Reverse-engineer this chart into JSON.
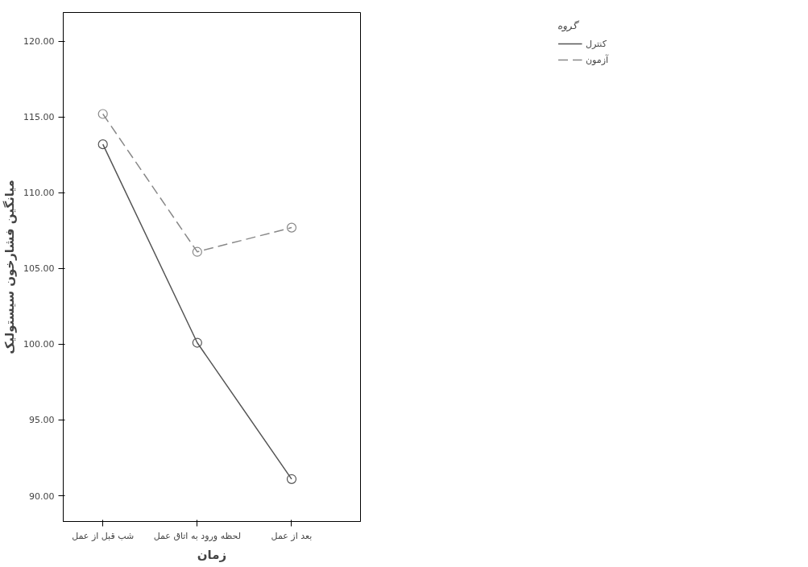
{
  "chart_data": {
    "type": "line",
    "xlabel": "زمان",
    "ylabel": "میانگین فشارخون سیستولیک",
    "legend_title": "گروه",
    "categories": [
      "شب قبل از عمل",
      "لحظه ورود به اتاق عمل",
      "بعد از عمل"
    ],
    "series": [
      {
        "name": "کنترل",
        "color": "#555555",
        "line_style": "solid",
        "values": [
          113.2,
          100.1,
          91.1
        ]
      },
      {
        "name": "آزمون",
        "color": "#888888",
        "line_style": "dashed",
        "values": [
          115.2,
          106.1,
          107.7
        ]
      }
    ],
    "ylim": [
      88.3,
      121.9
    ],
    "yticks": [
      {
        "value": 90,
        "label": "90.00"
      },
      {
        "value": 95,
        "label": "95.00"
      },
      {
        "value": 100,
        "label": "100.00"
      },
      {
        "value": 105,
        "label": "105.00"
      },
      {
        "value": 110,
        "label": "110.00"
      },
      {
        "value": 115,
        "label": "115.00"
      },
      {
        "value": 120,
        "label": "120.00"
      }
    ],
    "marker": "circle",
    "grid": false,
    "legend": "top right"
  }
}
